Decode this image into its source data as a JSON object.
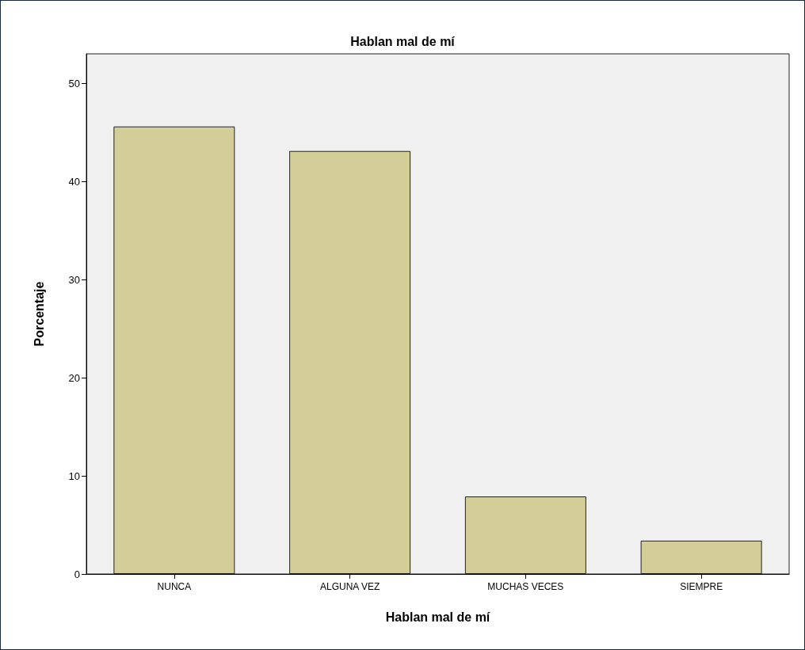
{
  "chart_data": {
    "type": "bar",
    "title": "Hablan mal de mí",
    "xlabel": "Hablan mal de mí",
    "ylabel": "Porcentaje",
    "categories": [
      "NUNCA",
      "ALGUNA VEZ",
      "MUCHAS VECES",
      "SIEMPRE"
    ],
    "values": [
      45.6,
      43.1,
      7.9,
      3.4
    ],
    "color": "#d3ce98",
    "ylim": [
      0,
      53
    ],
    "yticks": [
      0,
      10,
      20,
      30,
      40,
      50
    ]
  }
}
